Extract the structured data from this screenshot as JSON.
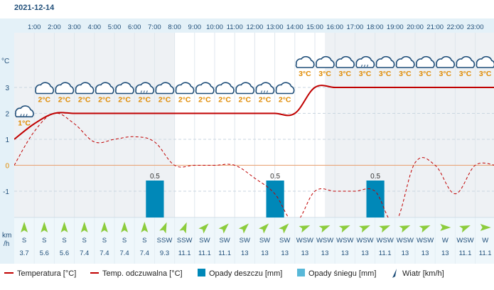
{
  "date": "2021-12-14",
  "axis_unit": "°C",
  "wind_unit_line1": "km",
  "wind_unit_line2": "/h",
  "legend": {
    "temperature": "Temperatura [°C]",
    "felt": "Temp. odczuwalna [°C]",
    "rain": "Opady deszczu [mm]",
    "snow": "Opady śniegu [mm]",
    "wind": "Wiatr [km/h]"
  },
  "colors": {
    "temperature": "#c00000",
    "felt": "#c00000",
    "rain": "#0088b8",
    "snow": "#58b8d8",
    "wind_arrow": "#8ccc3c",
    "label": "#1f4e79",
    "temp_label": "#e08a00"
  },
  "chart_data": {
    "type": "line",
    "x": [
      "0:00",
      "1:00",
      "2:00",
      "3:00",
      "4:00",
      "5:00",
      "6:00",
      "7:00",
      "8:00",
      "9:00",
      "10:00",
      "11:00",
      "12:00",
      "13:00",
      "14:00",
      "15:00",
      "16:00",
      "17:00",
      "18:00",
      "19:00",
      "20:00",
      "21:00",
      "22:00",
      "23:00",
      "0:00"
    ],
    "tick_labels": [
      "1:00",
      "2:00",
      "3:00",
      "4:00",
      "5:00",
      "6:00",
      "7:00",
      "8:00",
      "9:00",
      "10:00",
      "11:00",
      "12:00",
      "13:00",
      "14:00",
      "15:00",
      "16:00",
      "17:00",
      "18:00",
      "19:00",
      "20:00",
      "21:00",
      "22:00",
      "23:00"
    ],
    "y_ticks": [
      "3",
      "2",
      "1",
      "0",
      "-1"
    ],
    "ylim": [
      -2.2,
      4.4
    ],
    "series": [
      {
        "name": "Temperatura [°C]",
        "values": [
          1,
          1.6,
          2,
          2,
          2,
          2,
          2,
          2,
          2,
          2,
          2,
          2,
          2,
          2,
          2,
          3,
          3,
          3,
          3,
          3,
          3,
          3,
          3,
          3,
          3
        ]
      },
      {
        "name": "Temp. odczuwalna [°C]",
        "values": [
          0,
          1.3,
          2,
          1.6,
          0.9,
          1,
          1.1,
          0.9,
          0,
          0,
          0,
          0,
          -0.5,
          -1.1,
          -2.2,
          -1,
          -1,
          -1,
          -1,
          -2.2,
          0.1,
          0,
          -1.1,
          0,
          0
        ]
      }
    ],
    "rain": [
      {
        "hour": "7:00",
        "value": 0.5,
        "label": "0.5"
      },
      {
        "hour": "13:00",
        "value": 0.5,
        "label": "0.5"
      },
      {
        "hour": "18:00",
        "value": 0.5,
        "label": "0.5"
      }
    ],
    "temp_labels": [
      "1°C",
      "2°C",
      "2°C",
      "2°C",
      "2°C",
      "2°C",
      "2°C",
      "2°C",
      "2°C",
      "2°C",
      "2°C",
      "2°C",
      "2°C",
      "2°C",
      "3°C",
      "3°C",
      "3°C",
      "3°C",
      "3°C",
      "3°C",
      "3°C",
      "3°C",
      "3°C",
      "3°C"
    ],
    "weather_icons": [
      "cloud-rain-icon",
      "cloud-icon",
      "cloud-icon",
      "cloud-icon",
      "cloud-icon",
      "cloud-icon",
      "cloud-rain-icon",
      "cloud-icon",
      "cloud-icon",
      "cloud-icon",
      "cloud-icon",
      "cloud-icon",
      "cloud-rain-icon",
      "cloud-icon",
      "cloud-icon",
      "cloud-icon",
      "cloud-icon",
      "cloud-rain-icon",
      "cloud-icon",
      "cloud-icon",
      "cloud-icon",
      "cloud-icon",
      "cloud-icon",
      "cloud-icon"
    ],
    "wind_dir": [
      "S",
      "S",
      "S",
      "S",
      "S",
      "S",
      "S",
      "SSW",
      "SSW",
      "SW",
      "SW",
      "SW",
      "SW",
      "SW",
      "WSW",
      "WSW",
      "WSW",
      "WSW",
      "WSW",
      "WSW",
      "WSW",
      "W",
      "WSW",
      "W"
    ],
    "wind_speed": [
      "3.7",
      "5.6",
      "5.6",
      "7.4",
      "7.4",
      "7.4",
      "7.4",
      "9.3",
      "11.1",
      "11.1",
      "11.1",
      "13",
      "13",
      "13",
      "13",
      "13",
      "13",
      "13",
      "11.1",
      "13",
      "13",
      "13",
      "11.1",
      "11.1"
    ],
    "wind_angle": [
      0,
      0,
      0,
      0,
      0,
      0,
      0,
      22.5,
      22.5,
      45,
      45,
      45,
      45,
      45,
      67.5,
      67.5,
      67.5,
      67.5,
      67.5,
      67.5,
      67.5,
      90,
      67.5,
      90
    ]
  }
}
